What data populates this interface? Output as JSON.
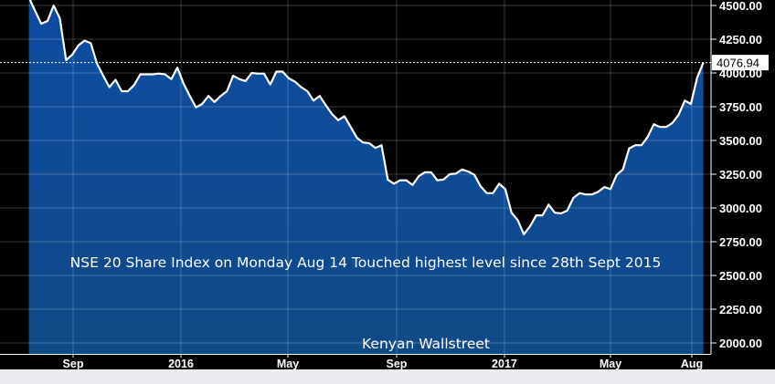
{
  "chart_data": {
    "type": "area",
    "title": "",
    "xlabel": "",
    "ylabel": "",
    "y_axis_position": "right",
    "ylim": [
      1920,
      4540
    ],
    "y_ticks": [
      "4500.00",
      "4250.00",
      "4000.00",
      "3750.00",
      "3500.00",
      "3250.00",
      "3000.00",
      "2750.00",
      "2500.00",
      "2250.00",
      "2000.00"
    ],
    "y_tick_values": [
      4500,
      4250,
      4000,
      3750,
      3500,
      3250,
      3000,
      2750,
      2500,
      2250,
      2000
    ],
    "x_ticks": [
      {
        "label": "Sep",
        "date": "2015-09-01"
      },
      {
        "label": "2016",
        "date": "2016-01-01"
      },
      {
        "label": "May",
        "date": "2016-05-01"
      },
      {
        "label": "Sep",
        "date": "2016-09-01"
      },
      {
        "label": "2017",
        "date": "2017-01-01"
      },
      {
        "label": "May",
        "date": "2017-05-01"
      },
      {
        "label": "Aug",
        "date": "2017-08-01"
      }
    ],
    "grid": true,
    "last_value_label": "4076.94",
    "annotations": [
      "NSE 20 Share Index on Monday Aug 14 Touched highest level since 28th Sept 2015",
      "Kenyan Wallstreet"
    ],
    "colors": {
      "fill_top": "#0f4ca3",
      "fill_bottom": "#0d4a86",
      "line": "#ffffff",
      "background": "#000000"
    },
    "x": [
      "2015-07-13",
      "2015-07-20",
      "2015-07-27",
      "2015-08-03",
      "2015-08-10",
      "2015-08-17",
      "2015-08-24",
      "2015-08-31",
      "2015-09-07",
      "2015-09-14",
      "2015-09-21",
      "2015-09-28",
      "2015-10-05",
      "2015-10-12",
      "2015-10-19",
      "2015-10-26",
      "2015-11-02",
      "2015-11-09",
      "2015-11-16",
      "2015-11-23",
      "2015-11-30",
      "2015-12-07",
      "2015-12-14",
      "2015-12-21",
      "2015-12-28",
      "2016-01-04",
      "2016-01-11",
      "2016-01-18",
      "2016-01-25",
      "2016-02-01",
      "2016-02-08",
      "2016-02-15",
      "2016-02-22",
      "2016-02-29",
      "2016-03-07",
      "2016-03-14",
      "2016-03-21",
      "2016-03-28",
      "2016-04-04",
      "2016-04-11",
      "2016-04-18",
      "2016-04-25",
      "2016-05-02",
      "2016-05-09",
      "2016-05-16",
      "2016-05-23",
      "2016-05-30",
      "2016-06-06",
      "2016-06-13",
      "2016-06-20",
      "2016-06-27",
      "2016-07-04",
      "2016-07-11",
      "2016-07-18",
      "2016-07-25",
      "2016-08-01",
      "2016-08-08",
      "2016-08-15",
      "2016-08-22",
      "2016-08-29",
      "2016-09-05",
      "2016-09-12",
      "2016-09-19",
      "2016-09-26",
      "2016-10-03",
      "2016-10-10",
      "2016-10-17",
      "2016-10-24",
      "2016-10-31",
      "2016-11-07",
      "2016-11-14",
      "2016-11-21",
      "2016-11-28",
      "2016-12-05",
      "2016-12-12",
      "2016-12-19",
      "2016-12-26",
      "2017-01-02",
      "2017-01-09",
      "2017-01-16",
      "2017-01-23",
      "2017-01-30",
      "2017-02-06",
      "2017-02-13",
      "2017-02-20",
      "2017-02-27",
      "2017-03-06",
      "2017-03-13",
      "2017-03-20",
      "2017-03-27",
      "2017-04-03",
      "2017-04-10",
      "2017-04-17",
      "2017-04-24",
      "2017-05-01",
      "2017-05-08",
      "2017-05-15",
      "2017-05-22",
      "2017-05-29",
      "2017-06-05",
      "2017-06-12",
      "2017-06-19",
      "2017-06-26",
      "2017-07-03",
      "2017-07-10",
      "2017-07-17",
      "2017-07-24",
      "2017-07-31",
      "2017-08-07",
      "2017-08-14"
    ],
    "values": [
      4560,
      4460,
      4365,
      4385,
      4500,
      4405,
      4095,
      4135,
      4205,
      4240,
      4220,
      4070,
      3980,
      3895,
      3950,
      3865,
      3865,
      3910,
      3990,
      3990,
      3990,
      3995,
      3990,
      3955,
      4040,
      3920,
      3830,
      3745,
      3770,
      3830,
      3785,
      3830,
      3865,
      3980,
      3955,
      3940,
      4000,
      3995,
      3995,
      3915,
      4010,
      4010,
      3960,
      3935,
      3895,
      3865,
      3795,
      3830,
      3760,
      3695,
      3650,
      3680,
      3600,
      3520,
      3485,
      3480,
      3445,
      3465,
      3210,
      3180,
      3205,
      3205,
      3170,
      3235,
      3265,
      3265,
      3205,
      3210,
      3250,
      3255,
      3285,
      3270,
      3245,
      3160,
      3110,
      3110,
      3180,
      3140,
      2965,
      2910,
      2805,
      2865,
      2945,
      2945,
      3025,
      2965,
      2960,
      2980,
      3075,
      3110,
      3100,
      3100,
      3120,
      3155,
      3140,
      3245,
      3285,
      3440,
      3465,
      3465,
      3525,
      3620,
      3600,
      3600,
      3630,
      3690,
      3795,
      3770,
      3965,
      4077
    ]
  }
}
